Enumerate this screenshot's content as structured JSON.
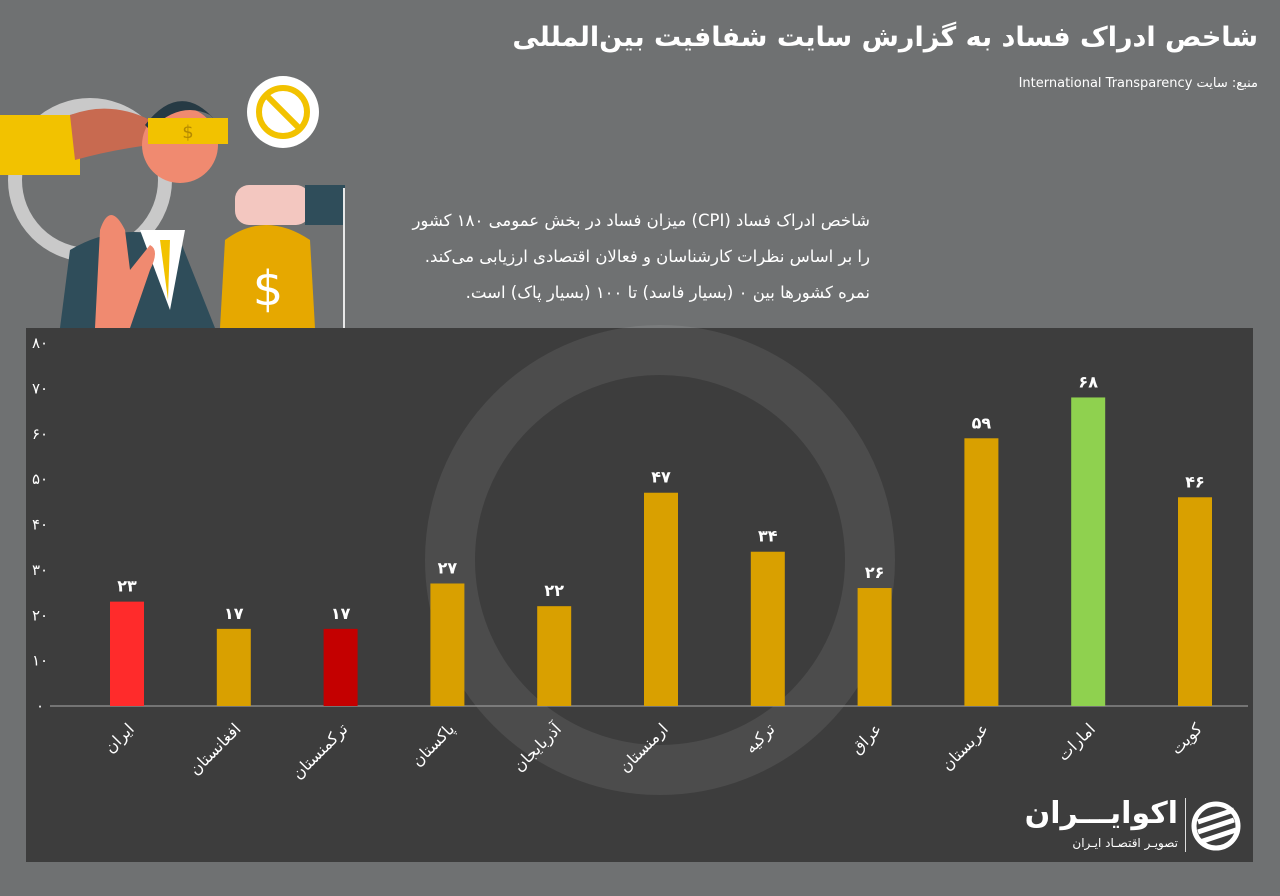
{
  "header": {
    "title": "شاخص ادراک فساد به گزارش سایت شفافیت بین‌المللی",
    "source": "منبع: سایت International Transparency"
  },
  "description": [
    "شاخص ادراک فساد (CPI) میزان فساد در بخش عمومی ۱۸۰ کشور",
    "را بر اساس نظرات کارشناسان و فعالان اقتصادی ارزیابی می‌کند.",
    "نمره کشورها بین ۰ (بسیار فاسد) تا ۱۰۰ (بسیار پاک) است."
  ],
  "logo": {
    "name": "اکوایـــران",
    "tagline": "تصویـر اقتصـاد ایـران"
  },
  "chart_data": {
    "type": "bar",
    "title": "شاخص ادراک فساد",
    "categories": [
      "ایران",
      "افغانستان",
      "ترکمنستان",
      "پاکستان",
      "آذربایجان",
      "ارمنستان",
      "ترکیه",
      "عراق",
      "عربستان",
      "امارات",
      "کویت"
    ],
    "values": [
      23,
      17,
      17,
      27,
      22,
      47,
      34,
      26,
      59,
      68,
      46
    ],
    "value_labels": [
      "۲۳",
      "۱۷",
      "۱۷",
      "۲۷",
      "۲۲",
      "۴۷",
      "۳۴",
      "۲۶",
      "۵۹",
      "۶۸",
      "۴۶"
    ],
    "colors": [
      "#ff2b2b",
      "#d9a000",
      "#c40000",
      "#d9a000",
      "#d9a000",
      "#d9a000",
      "#d9a000",
      "#d9a000",
      "#d9a000",
      "#8fd14f",
      "#d9a000"
    ],
    "ylim": [
      0,
      80
    ],
    "yticks": [
      0,
      10,
      20,
      30,
      40,
      50,
      60,
      70,
      80
    ],
    "ytick_labels": [
      "۰",
      "۱۰",
      "۲۰",
      "۳۰",
      "۴۰",
      "۵۰",
      "۶۰",
      "۷۰",
      "۸۰"
    ],
    "xlabel": "",
    "ylabel": "",
    "grid": false,
    "legend": "none"
  }
}
